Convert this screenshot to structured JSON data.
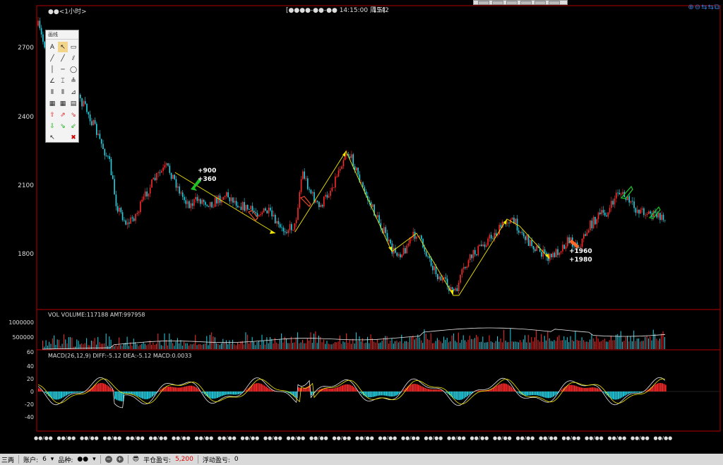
{
  "header": {
    "period": "●●<1小时>",
    "cursor": "[●●●●-●●-●● 14:15:00 周三]",
    "price": "1942"
  },
  "colors": {
    "up": "#ff2a2a",
    "down": "#22d3e6",
    "price_line": "#ffffff",
    "trend": "#f2e600",
    "panel_border": "#b40000",
    "macd_diff": "#e8e8e8",
    "macd_dea": "#f2e600"
  },
  "price_axis": {
    "ticks": [
      "2700",
      "2400",
      "2100",
      "1800"
    ]
  },
  "annotations": {
    "a1": "+900",
    "a2": "+360",
    "a3": "+1960",
    "a4": "+1980"
  },
  "volume": {
    "header": "VOL  VOLUME:117188 AMT:997958",
    "ticks": [
      "1000000",
      "500000"
    ]
  },
  "macd": {
    "header": "MACD(26,12,9)  DIFF:-5.12 DEA:-5.12 MACD:0.0033",
    "ticks": [
      "60",
      "40",
      "20",
      "0",
      "-20",
      "-40"
    ]
  },
  "x_labels": [
    "●●/●●",
    "●●/●●",
    "●●/●●",
    "●●/●●",
    "●●/●●",
    "●●/●●",
    "●●/●●",
    "●●/●●",
    "●●/●●",
    "●●/●●",
    "●●/●●",
    "●●/●●",
    "●●/●●",
    "●●/●●",
    "●●/●●",
    "●●/●●",
    "●●/●●",
    "●●/●●",
    "●●/●●",
    "●●/●●",
    "●●/●●",
    "●●/●●",
    "●●/●●",
    "●●/●●",
    "●●/●●",
    "●●/●●",
    "●●/●●",
    "●●/●●"
  ],
  "toolbox": {
    "title": "画线",
    "tools": [
      "A",
      "↖",
      "▭",
      "╱",
      "╱",
      "⫽",
      "│",
      "─",
      "◯",
      "∠",
      "⌶",
      "≜",
      "⦀",
      "⦀",
      "⊿",
      "▦",
      "▦",
      "▤",
      "⇧",
      "⇗",
      "⇘",
      "⇩",
      "⇘",
      "⇙",
      "↖",
      "",
      "✖"
    ]
  },
  "status_bar": {
    "left": "三两",
    "account_label": "账户:",
    "account_value": "6",
    "product_label": "品种:",
    "product_value": "●●",
    "pnl_label": "平仓盈亏:",
    "pnl_value": "5,200",
    "float_label": "浮动盈亏:",
    "float_value": "0"
  },
  "zoom_icons": "⊕⊖⇆⇆⧉"
}
